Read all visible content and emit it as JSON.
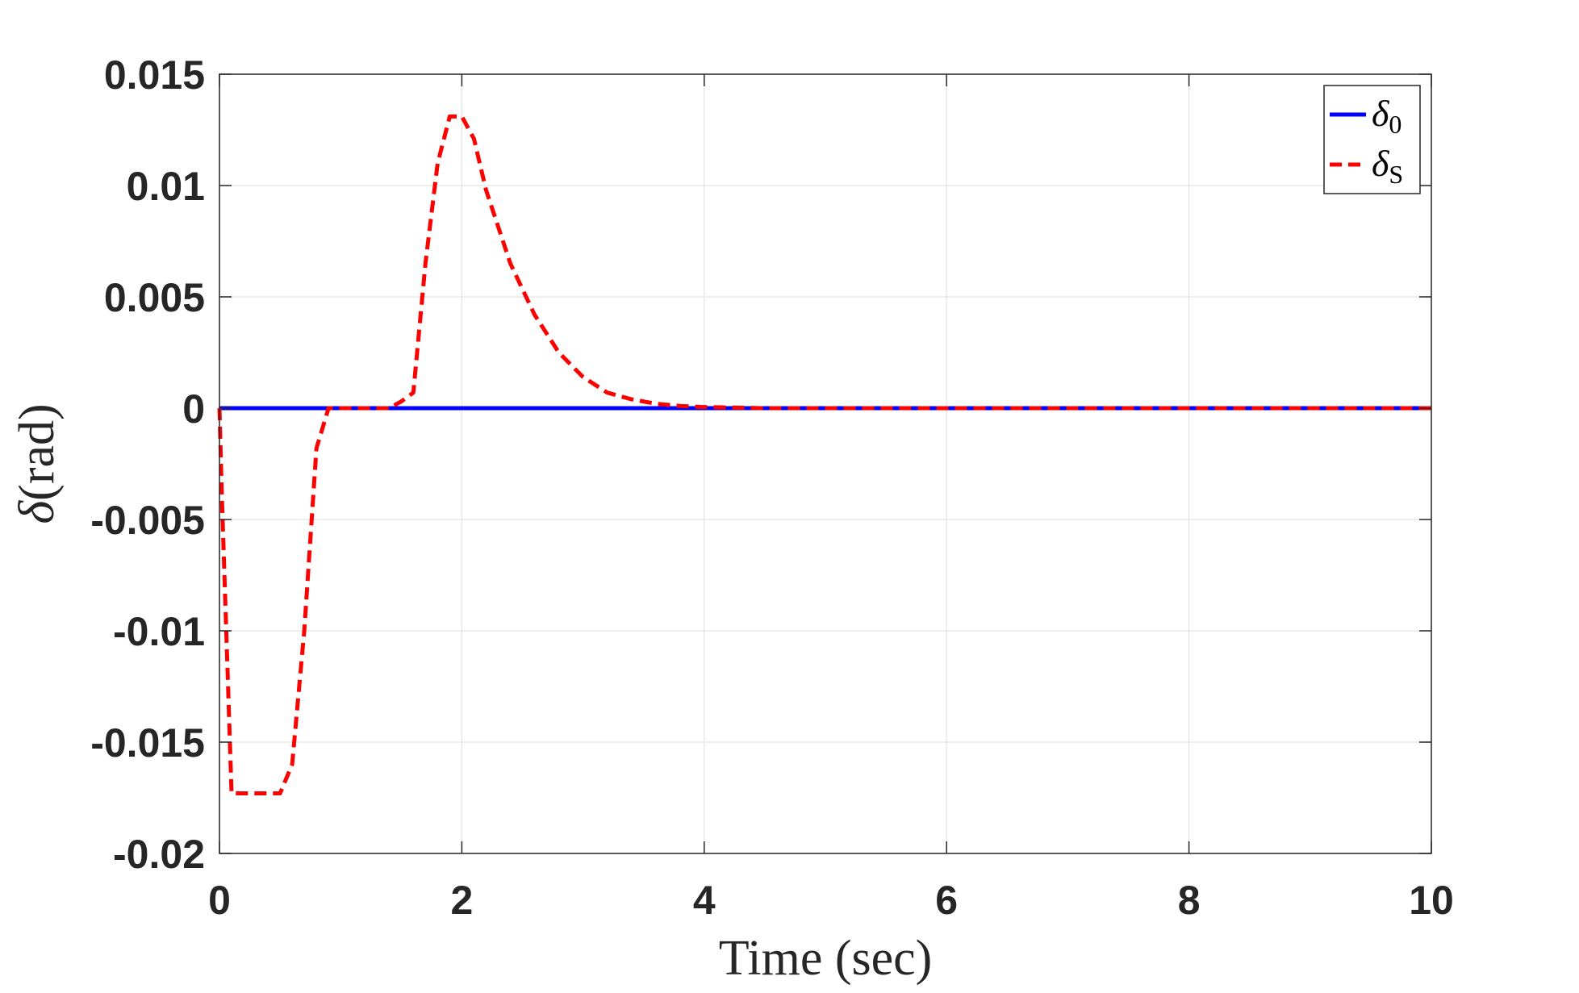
{
  "chart_data": {
    "type": "line",
    "title": "",
    "xlabel": "Time (sec)",
    "ylabel_symbol": "δ",
    "ylabel_unit": "(rad)",
    "xlim": [
      0,
      10
    ],
    "ylim": [
      -0.02,
      0.015
    ],
    "xticks": [
      0,
      2,
      4,
      6,
      8,
      10
    ],
    "xtick_labels": [
      "0",
      "2",
      "4",
      "6",
      "8",
      "10"
    ],
    "yticks": [
      0.015,
      0.01,
      0.005,
      0,
      -0.005,
      -0.01,
      -0.015,
      -0.02
    ],
    "ytick_labels": [
      "0.015",
      "0.01",
      "0.005",
      "0",
      "-0.005",
      "-0.01",
      "-0.015",
      "-0.02"
    ],
    "grid": true,
    "legend_position": "top-right",
    "series": [
      {
        "name": "δ",
        "name_subscript": "0",
        "color": "#0000ff",
        "style": "solid",
        "x": [
          0,
          10
        ],
        "y": [
          0,
          0
        ]
      },
      {
        "name": "δ",
        "name_subscript": "S",
        "color": "#ff0000",
        "style": "dashed",
        "x": [
          0,
          0.02,
          0.1,
          0.2,
          0.3,
          0.4,
          0.5,
          0.6,
          0.65,
          0.7,
          0.8,
          0.9,
          1.0,
          1.2,
          1.4,
          1.5,
          1.6,
          1.7,
          1.8,
          1.9,
          2.0,
          2.1,
          2.2,
          2.4,
          2.6,
          2.8,
          3.0,
          3.2,
          3.4,
          3.6,
          3.8,
          4.0,
          4.5,
          5,
          6,
          7,
          8,
          9,
          10
        ],
        "y": [
          0,
          -0.004,
          -0.0173,
          -0.0173,
          -0.0173,
          -0.0173,
          -0.0173,
          -0.016,
          -0.013,
          -0.01,
          -0.0018,
          0,
          0,
          0,
          0,
          0.0003,
          0.0007,
          0.0065,
          0.011,
          0.0131,
          0.0131,
          0.0121,
          0.0098,
          0.0065,
          0.0042,
          0.0025,
          0.0014,
          0.0007,
          0.0004,
          0.0002,
          0.0001,
          5e-05,
          0,
          0,
          0,
          0,
          0,
          0,
          0
        ]
      }
    ]
  }
}
